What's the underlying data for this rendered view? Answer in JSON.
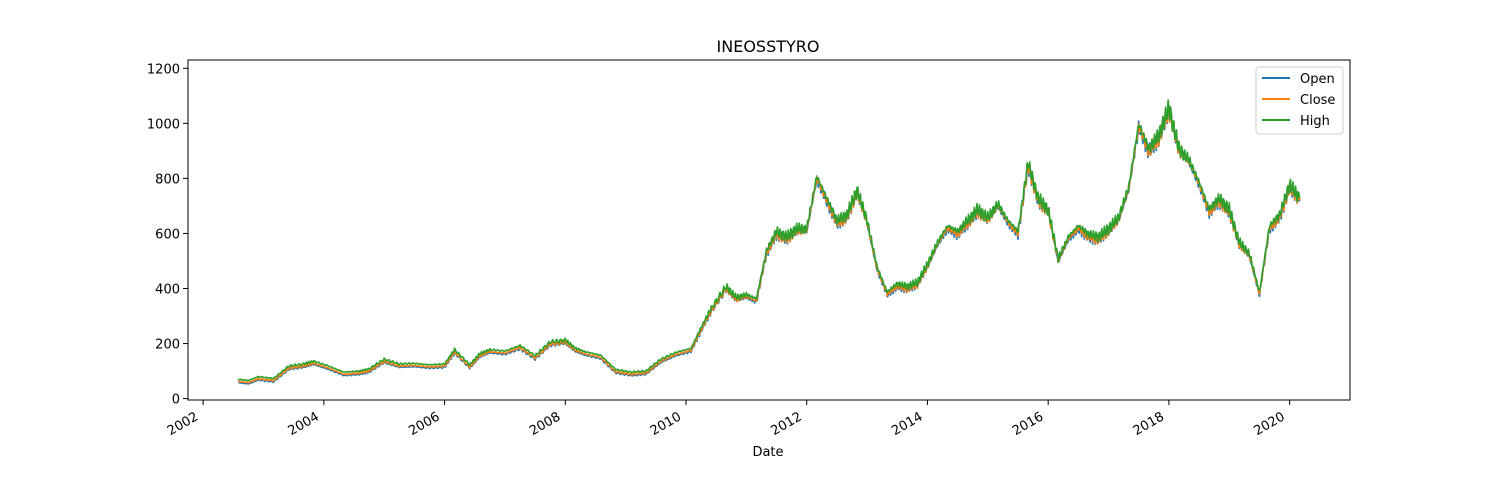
{
  "chart_data": {
    "type": "line",
    "title": "INEOSSTYRO",
    "xlabel": "Date",
    "ylabel": "",
    "xlim": [
      "2001-10-01",
      "2021-01-01"
    ],
    "ylim": [
      -5,
      1230
    ],
    "x_ticks": [
      "2002",
      "2004",
      "2006",
      "2008",
      "2010",
      "2012",
      "2014",
      "2016",
      "2018",
      "2020"
    ],
    "y_ticks": [
      0,
      200,
      400,
      600,
      800,
      1000,
      1200
    ],
    "grid": false,
    "legend_position": "top-right",
    "series": [
      {
        "name": "Open",
        "color": "#1f77b4",
        "offset": -4
      },
      {
        "name": "Close",
        "color": "#ff7f0e",
        "offset": 0
      },
      {
        "name": "High",
        "color": "#2ca02c",
        "offset": 8
      }
    ],
    "x": [
      "2002-08",
      "2002-10",
      "2002-12",
      "2003-03",
      "2003-06",
      "2003-09",
      "2003-11",
      "2004-02",
      "2004-05",
      "2004-08",
      "2004-10",
      "2005-01",
      "2005-04",
      "2005-07",
      "2005-10",
      "2006-01",
      "2006-03",
      "2006-06",
      "2006-08",
      "2006-10",
      "2007-01",
      "2007-04",
      "2007-07",
      "2007-10",
      "2008-01",
      "2008-03",
      "2008-05",
      "2008-08",
      "2008-11",
      "2009-02",
      "2009-05",
      "2009-08",
      "2009-11",
      "2010-02",
      "2010-04",
      "2010-06",
      "2010-09",
      "2010-11",
      "2011-01",
      "2011-03",
      "2011-05",
      "2011-07",
      "2011-09",
      "2011-11",
      "2012-01",
      "2012-03",
      "2012-05",
      "2012-07",
      "2012-09",
      "2012-11",
      "2013-01",
      "2013-03",
      "2013-05",
      "2013-07",
      "2013-09",
      "2013-11",
      "2014-01",
      "2014-03",
      "2014-05",
      "2014-07",
      "2014-09",
      "2014-11",
      "2015-01",
      "2015-03",
      "2015-05",
      "2015-07",
      "2015-09",
      "2015-11",
      "2016-01",
      "2016-03",
      "2016-05",
      "2016-07",
      "2016-09",
      "2016-11",
      "2017-01",
      "2017-03",
      "2017-05",
      "2017-07",
      "2017-09",
      "2017-11",
      "2018-01",
      "2018-03",
      "2018-05",
      "2018-07",
      "2018-09",
      "2018-11",
      "2019-01",
      "2019-03",
      "2019-05",
      "2019-07",
      "2019-09",
      "2019-11",
      "2020-01",
      "2020-03"
    ],
    "values": [
      62,
      58,
      72,
      65,
      110,
      118,
      128,
      110,
      88,
      92,
      100,
      135,
      118,
      120,
      115,
      118,
      170,
      115,
      155,
      170,
      165,
      185,
      148,
      198,
      205,
      175,
      162,
      150,
      98,
      88,
      92,
      135,
      160,
      175,
      250,
      320,
      400,
      360,
      370,
      355,
      530,
      600,
      580,
      610,
      610,
      800,
      720,
      640,
      660,
      750,
      640,
      470,
      380,
      410,
      400,
      415,
      480,
      560,
      620,
      600,
      640,
      680,
      650,
      700,
      640,
      600,
      850,
      720,
      680,
      500,
      580,
      620,
      590,
      580,
      610,
      650,
      760,
      990,
      900,
      950,
      1050,
      900,
      860,
      780,
      680,
      720,
      680,
      560,
      520,
      380,
      620,
      660,
      770,
      720
    ]
  }
}
